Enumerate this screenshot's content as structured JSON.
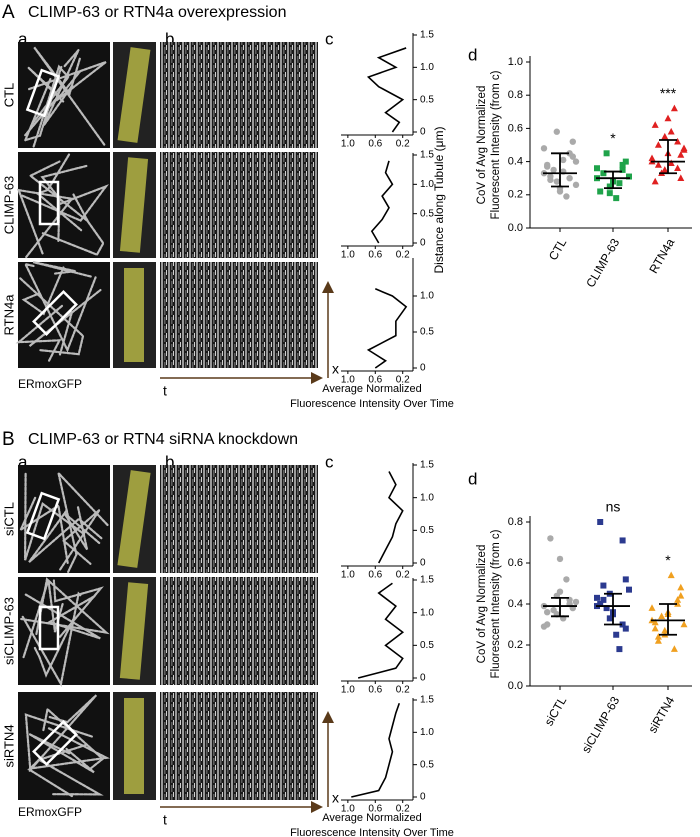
{
  "panels": [
    {
      "label": "A",
      "title": "CLIMP-63 or RTN4a overexpression",
      "sublabels": [
        "a",
        "b",
        "c",
        "d"
      ],
      "rows": [
        {
          "label": "CTL",
          "color": "#000000"
        },
        {
          "label": "CLIMP-63",
          "color": "#5cb82f"
        },
        {
          "label": "RTN4a",
          "color": "#e03c31"
        }
      ],
      "image_caption": "ERmoxGFP",
      "time_label": "t",
      "position_label": "x",
      "profiles": {
        "xlabel": [
          "Average Normalized",
          "Fluorescence Intensity Over Time"
        ],
        "ylabel": "Distance along Tubule (μm)",
        "xlim": [
          1.1,
          0.05
        ],
        "xticks": [
          {
            "value": 1,
            "label": "1.0"
          },
          0.6,
          0.2
        ],
        "items": [
          {
            "ylim": [
              0,
              1.5
            ],
            "yticks": [
              0,
              0.5,
              {
                "value": 1,
                "label": "1.0"
              },
              1.5
            ],
            "distance": [
              0,
              0.15,
              0.3,
              0.5,
              0.7,
              0.85,
              1.0,
              1.15,
              1.3
            ],
            "intensity": [
              0.35,
              0.25,
              0.45,
              0.2,
              0.55,
              0.7,
              0.3,
              0.55,
              0.15
            ]
          },
          {
            "ylim": [
              0,
              1.5
            ],
            "yticks": [
              0,
              0.5,
              {
                "value": 1,
                "label": "1.0"
              },
              1.5
            ],
            "distance": [
              0,
              0.2,
              0.4,
              0.6,
              0.8,
              1.0,
              1.2,
              1.4
            ],
            "intensity": [
              0.55,
              0.65,
              0.5,
              0.4,
              0.5,
              0.35,
              0.45,
              0.4
            ]
          },
          {
            "ylim": [
              0,
              1.5
            ],
            "yticks": [
              0,
              0.5,
              {
                "value": 1,
                "label": "1.0"
              }
            ],
            "distance": [
              0,
              0.1,
              0.25,
              0.45,
              0.65,
              0.85,
              1.0,
              1.1
            ],
            "intensity": [
              0.6,
              0.45,
              0.7,
              0.3,
              0.3,
              0.15,
              0.35,
              0.6
            ]
          }
        ]
      },
      "dots": {
        "ylabel": [
          "CoV of Avg Normalized",
          "Fluorescent Intensity (from c)"
        ],
        "ylim": [
          0,
          1
        ],
        "yticks": [
          {
            "value": 0,
            "label": "0.0"
          },
          0.2,
          0.4,
          0.6,
          0.8,
          {
            "value": 1,
            "label": "1.0"
          }
        ],
        "groups": [
          {
            "name": "CTL",
            "color": "#aaaaaa",
            "marker": "circle",
            "mean": 0.33,
            "low": 0.25,
            "high": 0.45,
            "values": [
              0.33,
              0.28,
              0.45,
              0.38,
              0.22,
              0.52,
              0.31,
              0.41,
              0.26,
              0.35,
              0.19,
              0.48,
              0.58,
              0.3,
              0.37,
              0.24,
              0.43,
              0.29,
              0.34,
              0.4
            ]
          },
          {
            "name": "CLIMP-63",
            "color": "#1fa34a",
            "marker": "square",
            "mean": 0.3,
            "low": 0.24,
            "high": 0.34,
            "significance": "*",
            "values": [
              0.3,
              0.25,
              0.35,
              0.22,
              0.28,
              0.4,
              0.33,
              0.18,
              0.31,
              0.45,
              0.27,
              0.36,
              0.21,
              0.38
            ]
          },
          {
            "name": "RTN4a",
            "color": "#e02020",
            "marker": "triangle",
            "mean": 0.4,
            "low": 0.33,
            "high": 0.53,
            "significance": "***",
            "values": [
              0.4,
              0.35,
              0.52,
              0.62,
              0.45,
              0.3,
              0.38,
              0.58,
              0.48,
              0.33,
              0.72,
              0.42,
              0.55,
              0.36,
              0.28,
              0.66,
              0.44,
              0.5,
              0.39,
              0.47
            ]
          }
        ]
      }
    },
    {
      "label": "B",
      "title": "CLIMP-63 or RTN4 siRNA knockdown",
      "sublabels": [
        "a",
        "b",
        "c",
        "d"
      ],
      "rows": [
        {
          "label": "siCTL",
          "color": "#000000"
        },
        {
          "label": "siCLIMP-63",
          "color": "#3a56a5"
        },
        {
          "label": "siRTN4",
          "color": "#f0a030"
        }
      ],
      "image_caption": "ERmoxGFP",
      "time_label": "t",
      "position_label": "x",
      "profiles": {
        "xlabel": [
          "Average Normalized",
          "Fluorescence Intensity Over Time"
        ],
        "xlim": [
          1.1,
          0.05
        ],
        "xticks": [
          {
            "value": 1,
            "label": "1.0"
          },
          0.6,
          0.2
        ],
        "items": [
          {
            "ylim": [
              0,
              1.5
            ],
            "yticks": [
              0,
              0.5,
              {
                "value": 1,
                "label": "1.0"
              },
              1.5
            ],
            "distance": [
              0,
              0.2,
              0.4,
              0.6,
              0.8,
              1.0,
              1.2,
              1.4
            ],
            "intensity": [
              0.55,
              0.45,
              0.35,
              0.3,
              0.2,
              0.4,
              0.3,
              0.4
            ]
          },
          {
            "ylim": [
              0,
              1.5
            ],
            "yticks": [
              0,
              0.5,
              {
                "value": 1,
                "label": "1.0"
              },
              1.5
            ],
            "distance": [
              0,
              0.15,
              0.3,
              0.5,
              0.7,
              0.9,
              1.1,
              1.3,
              1.45
            ],
            "intensity": [
              0.85,
              0.3,
              0.2,
              0.45,
              0.2,
              0.45,
              0.3,
              0.55,
              0.35
            ]
          },
          {
            "ylim": [
              0,
              1.5
            ],
            "yticks": [
              0,
              0.5,
              {
                "value": 1,
                "label": "1.0"
              },
              1.5
            ],
            "distance": [
              0,
              0.1,
              0.3,
              0.5,
              0.7,
              0.9,
              1.1,
              1.3,
              1.45
            ],
            "intensity": [
              0.95,
              0.55,
              0.45,
              0.4,
              0.35,
              0.4,
              0.35,
              0.3,
              0.25
            ]
          }
        ]
      },
      "dots": {
        "ylabel": [
          "CoV of Avg Normalized",
          "Fluorescent Intensity (from c)"
        ],
        "ylim": [
          0,
          0.8
        ],
        "yticks": [
          {
            "value": 0,
            "label": "0.0"
          },
          0.2,
          0.4,
          0.6,
          0.8
        ],
        "groups": [
          {
            "name": "siCTL",
            "color": "#aaaaaa",
            "marker": "circle",
            "mean": 0.39,
            "low": 0.34,
            "high": 0.43,
            "values": [
              0.39,
              0.35,
              0.42,
              0.3,
              0.46,
              0.38,
              0.72,
              0.33,
              0.41,
              0.37,
              0.52,
              0.29,
              0.44,
              0.4,
              0.36,
              0.62
            ]
          },
          {
            "name": "siCLIMP-63",
            "color": "#2b3a8f",
            "marker": "square",
            "mean": 0.39,
            "low": 0.3,
            "high": 0.45,
            "significance": "ns",
            "values": [
              0.39,
              0.45,
              0.3,
              0.8,
              0.35,
              0.52,
              0.42,
              0.25,
              0.47,
              0.38,
              0.18,
              0.43,
              0.33,
              0.71,
              0.4,
              0.36,
              0.28,
              0.49
            ]
          },
          {
            "name": "siRTN4",
            "color": "#f0a020",
            "marker": "triangle",
            "mean": 0.32,
            "low": 0.25,
            "high": 0.4,
            "significance": "*",
            "values": [
              0.32,
              0.25,
              0.4,
              0.28,
              0.36,
              0.44,
              0.22,
              0.54,
              0.3,
              0.34,
              0.18,
              0.38,
              0.27,
              0.42,
              0.31,
              0.35,
              0.48,
              0.24
            ]
          }
        ]
      }
    }
  ]
}
